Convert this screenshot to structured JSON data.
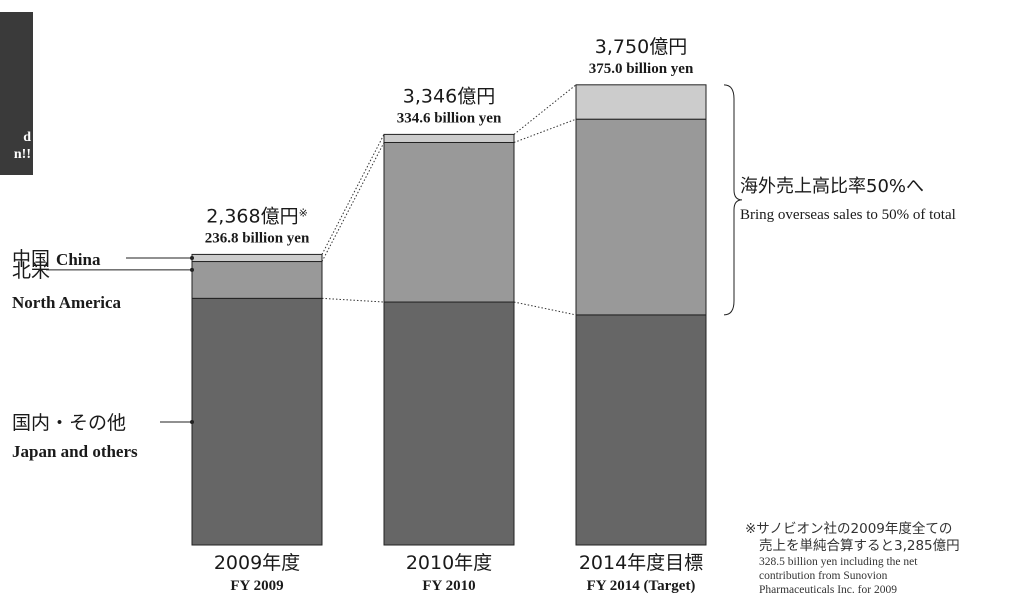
{
  "side_box": {
    "line1": "d",
    "line2": "n!!"
  },
  "footnote": {
    "jp_line1": "※サノビオン社の2009年度全ての",
    "jp_line2": "売上を単純合算すると3,285億円",
    "en_line1": "328.5 billion yen including the net",
    "en_line2": "contribution from Sunovion",
    "en_line3": "Pharmaceuticals Inc. for 2009"
  },
  "colors": {
    "japan": "#666666",
    "north_america": "#999999",
    "china": "#cccccc",
    "outline": "#222222",
    "text": "#1a1a1a"
  },
  "chart_data": {
    "type": "bar",
    "stacked": true,
    "title": "",
    "xlabel": "",
    "ylabel": "",
    "ylim": [
      0,
      4050
    ],
    "grid": false,
    "categories": [
      {
        "jp": "2009年度",
        "en": "FY 2009"
      },
      {
        "jp": "2010年度",
        "en": "FY 2010"
      },
      {
        "jp": "2014年度目標",
        "en": "FY 2014 (Target)"
      }
    ],
    "series": [
      {
        "key": "japan",
        "name": "国内・その他",
        "name_en": "Japan and others",
        "values": [
          2010,
          1980,
          1875
        ]
      },
      {
        "key": "north_america",
        "name": "北米",
        "name_en": "North America",
        "values": [
          300,
          1300,
          1595
        ]
      },
      {
        "key": "china",
        "name": "中国",
        "name_en": "China",
        "values": [
          58,
          66,
          280
        ]
      }
    ],
    "totals": [
      {
        "jp": "2,368億円",
        "mark": "※",
        "en": "236.8 billion yen",
        "value": 2368
      },
      {
        "jp": "3,346億円",
        "mark": "",
        "en": "334.6 billion yen",
        "value": 3346
      },
      {
        "jp": "3,750億円",
        "mark": "",
        "en": "375.0 billion yen",
        "value": 3750
      }
    ],
    "annotation": {
      "jp": "海外売上高比率50%へ",
      "en": "Bring overseas sales to 50% of total"
    }
  }
}
